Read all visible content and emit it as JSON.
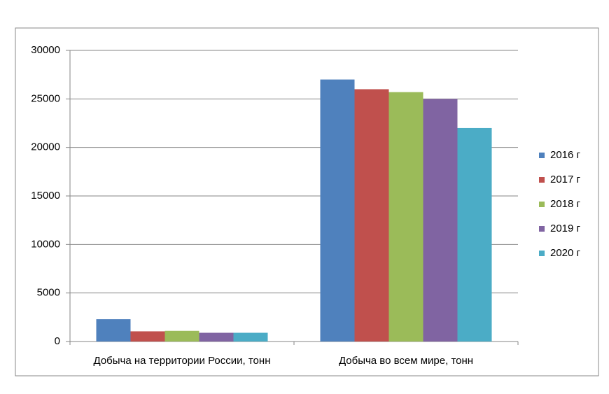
{
  "chart_data": {
    "type": "bar",
    "categories": [
      "Добыча на территории России, тонн",
      "Добыча во всем мире, тонн"
    ],
    "series": [
      {
        "name": "2016 г",
        "color": "#4f81bd",
        "values": [
          2300,
          27000
        ]
      },
      {
        "name": "2017 г",
        "color": "#c0504d",
        "values": [
          1050,
          26000
        ]
      },
      {
        "name": "2018 г",
        "color": "#9bbb59",
        "values": [
          1100,
          25700
        ]
      },
      {
        "name": "2019 г",
        "color": "#8064a2",
        "values": [
          900,
          25000
        ]
      },
      {
        "name": "2020 г",
        "color": "#4bacc6",
        "values": [
          900,
          22000
        ]
      }
    ],
    "ylim": [
      0,
      30000
    ],
    "yticks": [
      0,
      5000,
      10000,
      15000,
      20000,
      25000,
      30000
    ],
    "grid": true,
    "legend": "right"
  }
}
